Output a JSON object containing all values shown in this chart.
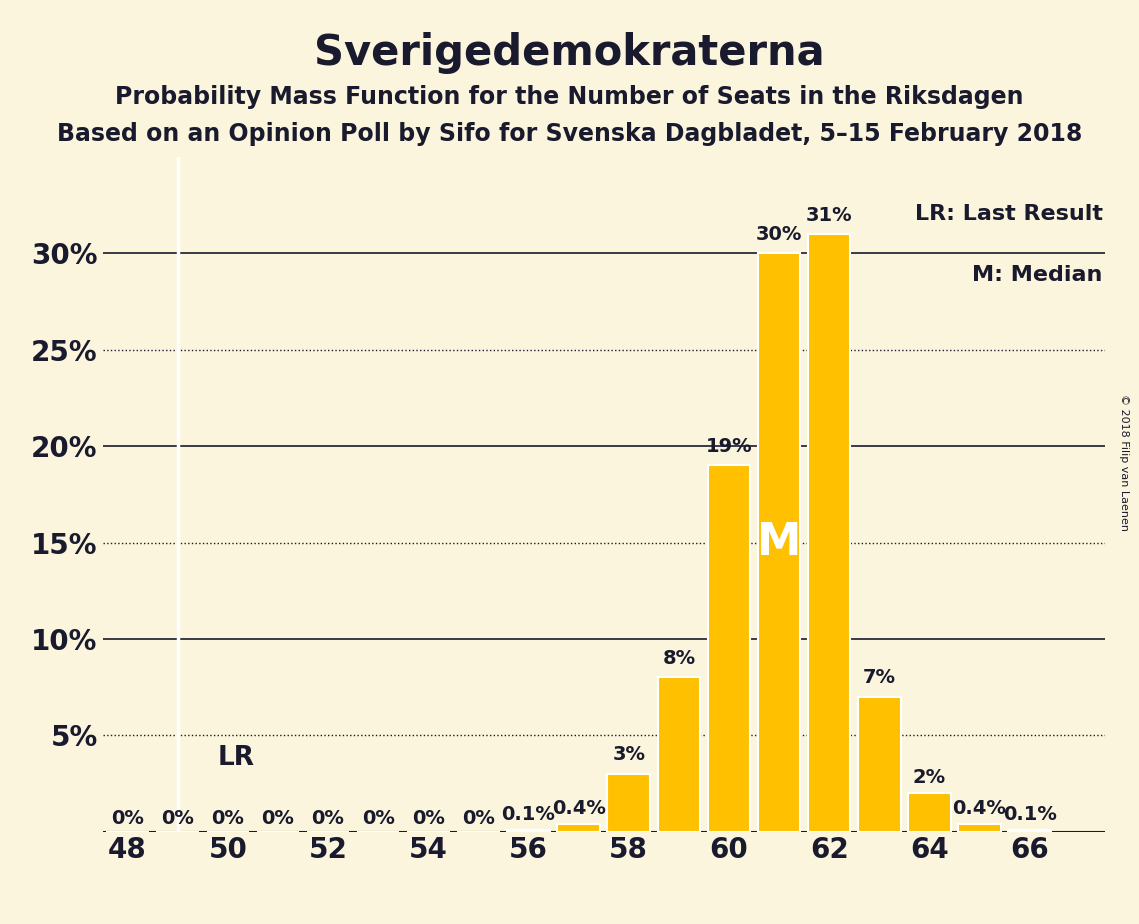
{
  "title": "Sverigedemokraterna",
  "subtitle1": "Probability Mass Function for the Number of Seats in the Riksdagen",
  "subtitle2": "Based on an Opinion Poll by Sifo for Svenska Dagbladet, 5–15 February 2018",
  "copyright": "© 2018 Filip van Laenen",
  "background_color": "#FAF5DC",
  "bar_color": "#FFC000",
  "bar_edge_color": "#FFFFFF",
  "text_color": "#1a1a2e",
  "seats": [
    48,
    49,
    50,
    51,
    52,
    53,
    54,
    55,
    56,
    57,
    58,
    59,
    60,
    61,
    62,
    63,
    64,
    65,
    66
  ],
  "probabilities": [
    0.0,
    0.0,
    0.0,
    0.0,
    0.0,
    0.0,
    0.0,
    0.0,
    0.1,
    0.4,
    3.0,
    8.0,
    19.0,
    30.0,
    31.0,
    7.0,
    2.0,
    0.4,
    0.1
  ],
  "bar_labels": [
    "0%",
    "0%",
    "0%",
    "0%",
    "0%",
    "0%",
    "0%",
    "0%",
    "0.1%",
    "0.4%",
    "3%",
    "8%",
    "19%",
    "30%",
    "31%",
    "7%",
    "2%",
    "0.4%",
    "0.1%"
  ],
  "last_result_seat": 49,
  "median_seat": 61,
  "xlim": [
    47.5,
    67.5
  ],
  "ylim": [
    0,
    35
  ],
  "xticks": [
    48,
    50,
    52,
    54,
    56,
    58,
    60,
    62,
    64,
    66
  ],
  "solid_gridlines": [
    10,
    20,
    30
  ],
  "dotted_gridlines": [
    5,
    15,
    25
  ],
  "title_fontsize": 30,
  "subtitle_fontsize": 17,
  "axis_fontsize": 20,
  "bar_label_fontsize": 14,
  "legend_fontsize": 16,
  "bar_width": 0.85
}
